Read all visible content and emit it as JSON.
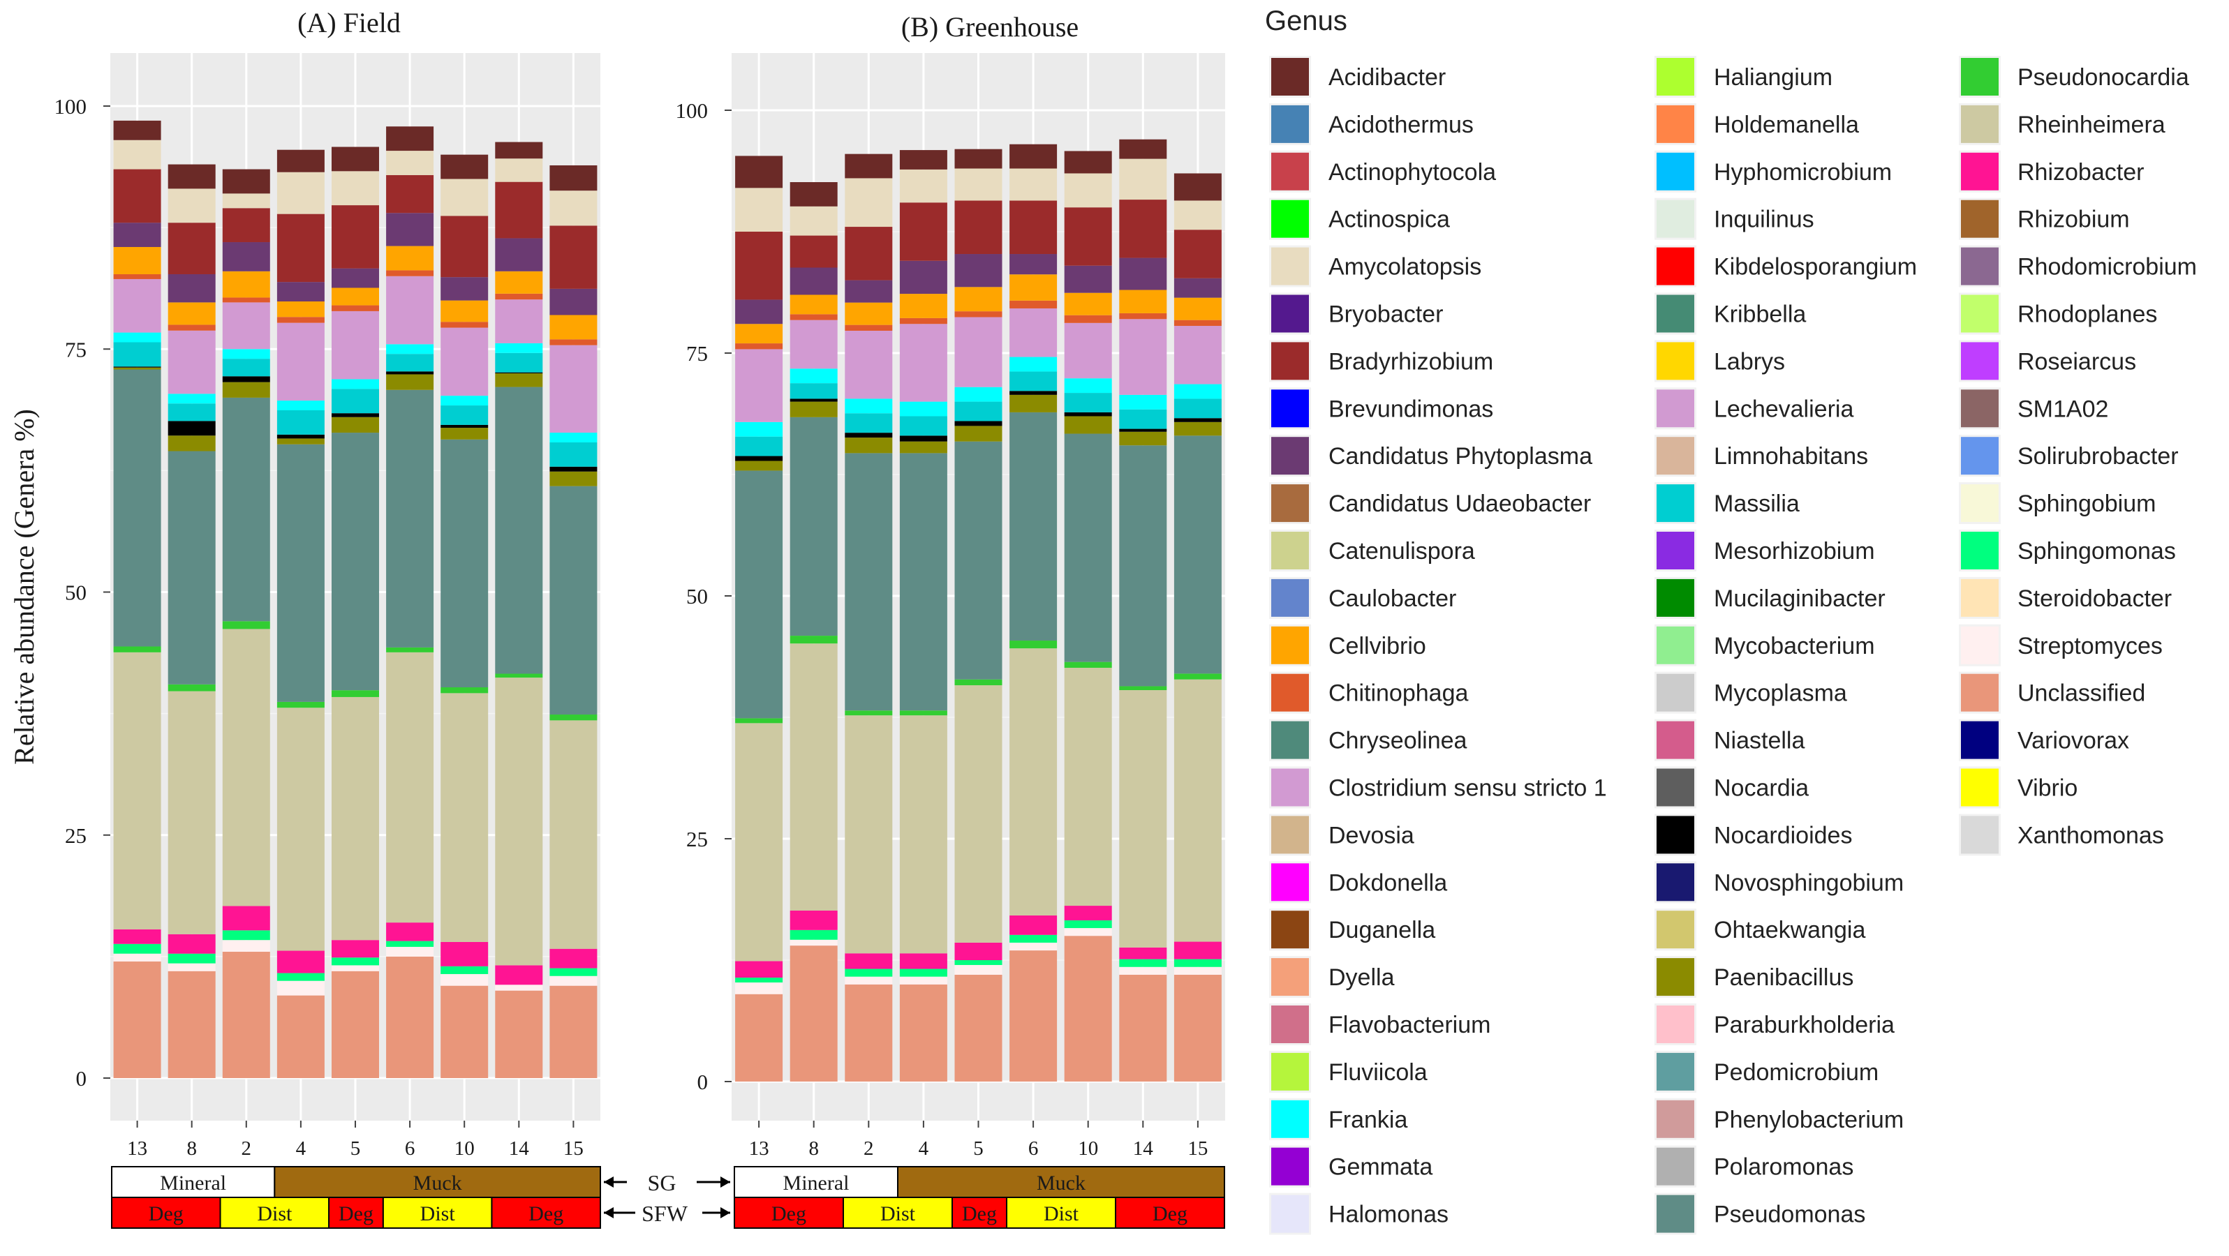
{
  "chart_data": [
    {
      "type": "bar",
      "title": "(A) Field",
      "ylabel": "Relative abundance (Genera %)",
      "ylim": [
        0,
        100
      ],
      "yticks": [
        "0",
        "25",
        "50",
        "75",
        "100"
      ],
      "categories": [
        "13",
        "8",
        "2",
        "4",
        "5",
        "6",
        "10",
        "14",
        "15"
      ],
      "series": [
        {
          "name": "Unclassified",
          "values": [
            12,
            11,
            13,
            8.5,
            11,
            12.5,
            9.5,
            9,
            9.5
          ]
        },
        {
          "name": "Streptomyces",
          "values": [
            0.8,
            0.8,
            1.2,
            1.5,
            0.6,
            1,
            1.2,
            0.6,
            1
          ]
        },
        {
          "name": "Sphingomonas",
          "values": [
            1,
            1,
            1,
            0.8,
            0.8,
            0.6,
            0.8,
            0,
            0.8
          ]
        },
        {
          "name": "Rhizobacter",
          "values": [
            1.5,
            2,
            2.5,
            2.3,
            1.8,
            1.9,
            2.5,
            2,
            2
          ]
        },
        {
          "name": "Rheinheimera",
          "values": [
            28.5,
            25,
            28.5,
            25,
            25,
            27.8,
            25.6,
            29.6,
            23.5
          ]
        },
        {
          "name": "Pseudonocardia",
          "values": [
            0.6,
            0.7,
            0.8,
            0.6,
            0.7,
            0.5,
            0.6,
            0.4,
            0.6
          ]
        },
        {
          "name": "Pseudomonas",
          "values": [
            28.5,
            24,
            23,
            26.5,
            26.5,
            26.5,
            25.5,
            29.5,
            23.5
          ]
        },
        {
          "name": "Paenibacillus",
          "values": [
            0.2,
            1.6,
            1.6,
            0.6,
            1.6,
            1.6,
            1.2,
            1.4,
            1.5
          ]
        },
        {
          "name": "Nocardioides",
          "values": [
            0.1,
            1.5,
            0.6,
            0.4,
            0.4,
            0.3,
            0.3,
            0.1,
            0.5
          ]
        },
        {
          "name": "Massilia",
          "values": [
            2.5,
            1.8,
            1.8,
            2.5,
            2.5,
            1.8,
            2,
            2,
            2.5
          ]
        },
        {
          "name": "Frankia",
          "values": [
            1,
            1,
            1,
            1,
            1,
            1,
            1,
            1,
            1
          ]
        },
        {
          "name": "Clostridium sensu stricto 1",
          "values": [
            5.5,
            6.5,
            4.8,
            8,
            7,
            7,
            7,
            4.5,
            9
          ]
        },
        {
          "name": "Chitinophaga",
          "values": [
            0.5,
            0.6,
            0.5,
            0.6,
            0.6,
            0.6,
            0.6,
            0.6,
            0.6
          ]
        },
        {
          "name": "Cellvibrio",
          "values": [
            2.8,
            2.3,
            2.7,
            1.6,
            1.8,
            2.5,
            2.2,
            2.3,
            2.5
          ]
        },
        {
          "name": "Candidatus Phytoplasma",
          "values": [
            2.5,
            2.9,
            3,
            2,
            2,
            3.4,
            2.4,
            3.4,
            2.7
          ]
        },
        {
          "name": "Bradyrhizobium",
          "values": [
            5.5,
            5.3,
            3.5,
            7,
            6.5,
            3.9,
            6.3,
            5.8,
            6.5
          ]
        },
        {
          "name": "Amycolatopsis",
          "values": [
            3,
            3.5,
            1.5,
            4.3,
            3.5,
            2.5,
            3.8,
            2.4,
            3.6
          ]
        },
        {
          "name": "Acidibacter",
          "values": [
            2,
            2.5,
            2.5,
            2.3,
            2.5,
            2.5,
            2.5,
            1.7,
            2.6
          ]
        }
      ]
    },
    {
      "type": "bar",
      "title": "(B) Greenhouse",
      "ylabel": "",
      "ylim": [
        0,
        100
      ],
      "yticks": [
        "0",
        "25",
        "50",
        "75",
        "100"
      ],
      "categories": [
        "13",
        "8",
        "2",
        "4",
        "5",
        "6",
        "10",
        "14",
        "15"
      ],
      "series": [
        {
          "name": "Unclassified",
          "values": [
            9,
            14,
            10,
            10,
            11,
            13.5,
            15,
            11,
            11
          ]
        },
        {
          "name": "Streptomyces",
          "values": [
            1.2,
            0.6,
            0.8,
            0.8,
            1,
            0.8,
            0.8,
            0.8,
            0.8
          ]
        },
        {
          "name": "Sphingomonas",
          "values": [
            0.5,
            1,
            0.8,
            0.8,
            0.5,
            0.8,
            0.8,
            0.8,
            0.8
          ]
        },
        {
          "name": "Rhizobacter",
          "values": [
            1.7,
            2,
            1.6,
            1.6,
            1.8,
            2,
            1.5,
            1.2,
            1.8
          ]
        },
        {
          "name": "Rheinheimera",
          "values": [
            24.5,
            27.5,
            24.5,
            24.5,
            26.5,
            27.5,
            24.5,
            26.5,
            27
          ]
        },
        {
          "name": "Pseudonocardia",
          "values": [
            0.5,
            0.8,
            0.5,
            0.5,
            0.6,
            0.8,
            0.6,
            0.4,
            0.6
          ]
        },
        {
          "name": "Pseudomonas",
          "values": [
            25.5,
            22.5,
            26.5,
            26.5,
            24.5,
            23.5,
            23.5,
            24.8,
            24.5
          ]
        },
        {
          "name": "Paenibacillus",
          "values": [
            1,
            1.6,
            1.6,
            1.2,
            1.6,
            1.8,
            1.8,
            1.4,
            1.4
          ]
        },
        {
          "name": "Nocardioides",
          "values": [
            0.5,
            0.3,
            0.5,
            0.6,
            0.5,
            0.4,
            0.4,
            0.3,
            0.4
          ]
        },
        {
          "name": "Massilia",
          "values": [
            2,
            1.6,
            2,
            2,
            2,
            2,
            2,
            2,
            2
          ]
        },
        {
          "name": "Frankia",
          "values": [
            1.5,
            1.5,
            1.5,
            1.5,
            1.5,
            1.5,
            1.5,
            1.5,
            1.5
          ]
        },
        {
          "name": "Clostridium sensu stricto 1",
          "values": [
            7.5,
            5,
            7,
            8,
            7.2,
            5,
            5.7,
            7.8,
            6
          ]
        },
        {
          "name": "Chitinophaga",
          "values": [
            0.6,
            0.6,
            0.6,
            0.6,
            0.6,
            0.8,
            0.8,
            0.6,
            0.6
          ]
        },
        {
          "name": "Cellvibrio",
          "values": [
            2,
            2,
            2.3,
            2.5,
            2.5,
            2.7,
            2.3,
            2.4,
            2.3
          ]
        },
        {
          "name": "Candidatus Phytoplasma",
          "values": [
            2.5,
            2.8,
            2.3,
            3.4,
            3.4,
            2.1,
            2.8,
            3.3,
            2
          ]
        },
        {
          "name": "Bradyrhizobium",
          "values": [
            7,
            3.3,
            5.5,
            6,
            5.5,
            5.5,
            6,
            6,
            5
          ]
        },
        {
          "name": "Amycolatopsis",
          "values": [
            4.5,
            3,
            5,
            3.4,
            3.3,
            3.3,
            3.5,
            4.2,
            3
          ]
        },
        {
          "name": "Acidibacter",
          "values": [
            3.3,
            2.5,
            2.5,
            2,
            2,
            2.5,
            2.3,
            2,
            2.8
          ]
        }
      ]
    }
  ],
  "bands": {
    "sg_label": "SG",
    "sfw_label": "SFW",
    "sg_segments": [
      {
        "label": "Mineral",
        "from": 0,
        "to": 3,
        "color": "#ffffff"
      },
      {
        "label": "Muck",
        "from": 3,
        "to": 9,
        "color": "#a06a10"
      }
    ],
    "sfw_segments": [
      {
        "label": "Deg",
        "from": 0,
        "to": 2,
        "color": "#ff0000"
      },
      {
        "label": "Dist",
        "from": 2,
        "to": 4,
        "color": "#ffff00"
      },
      {
        "label": "Deg",
        "from": 4,
        "to": 5,
        "color": "#ff0000"
      },
      {
        "label": "Dist",
        "from": 5,
        "to": 7,
        "color": "#ffff00"
      },
      {
        "label": "Deg",
        "from": 7,
        "to": 9,
        "color": "#ff0000"
      }
    ]
  },
  "legend": {
    "title": "Genus",
    "items": [
      {
        "name": "Acidibacter",
        "color": "#6b2a27"
      },
      {
        "name": "Acidothermus",
        "color": "#4682b4"
      },
      {
        "name": "Actinophytocola",
        "color": "#c8414b"
      },
      {
        "name": "Actinospica",
        "color": "#00ff00"
      },
      {
        "name": "Amycolatopsis",
        "color": "#e8dcc0"
      },
      {
        "name": "Bryobacter",
        "color": "#54198e"
      },
      {
        "name": "Bradyrhizobium",
        "color": "#9b2b2b"
      },
      {
        "name": "Brevundimonas",
        "color": "#0000ff"
      },
      {
        "name": "Candidatus Phytoplasma",
        "color": "#6b3a72"
      },
      {
        "name": "Candidatus Udaeobacter",
        "color": "#a86b3e"
      },
      {
        "name": "Catenulispora",
        "color": "#cdd28e"
      },
      {
        "name": "Caulobacter",
        "color": "#6384cc"
      },
      {
        "name": "Cellvibrio",
        "color": "#ffa500"
      },
      {
        "name": "Chitinophaga",
        "color": "#e05a2b"
      },
      {
        "name": "Chryseolinea",
        "color": "#4f8a7b"
      },
      {
        "name": "Clostridium sensu stricto 1",
        "color": "#d29ad2"
      },
      {
        "name": "Devosia",
        "color": "#d2b48c"
      },
      {
        "name": "Dokdonella",
        "color": "#ff00ff"
      },
      {
        "name": "Duganella",
        "color": "#8b4513"
      },
      {
        "name": "Dyella",
        "color": "#f4a07a"
      },
      {
        "name": "Flavobacterium",
        "color": "#d06f8a"
      },
      {
        "name": "Fluviicola",
        "color": "#b5f53c"
      },
      {
        "name": "Frankia",
        "color": "#00ffff"
      },
      {
        "name": "Gemmata",
        "color": "#9400d3"
      },
      {
        "name": "Halomonas",
        "color": "#e6e6fa"
      },
      {
        "name": "Haliangium",
        "color": "#adff2f"
      },
      {
        "name": "Holdemanella",
        "color": "#ff8447"
      },
      {
        "name": "Hyphomicrobium",
        "color": "#00bfff"
      },
      {
        "name": "Inquilinus",
        "color": "#e0ede0"
      },
      {
        "name": "Kibdelosporangium",
        "color": "#ff0000"
      },
      {
        "name": "Kribbella",
        "color": "#458b74"
      },
      {
        "name": "Labrys",
        "color": "#ffd700"
      },
      {
        "name": "Lechevalieria",
        "color": "#d19ad1"
      },
      {
        "name": "Limnohabitans",
        "color": "#d9b59b"
      },
      {
        "name": "Massilia",
        "color": "#00ced1"
      },
      {
        "name": "Mesorhizobium",
        "color": "#8a2be2"
      },
      {
        "name": "Mucilaginibacter",
        "color": "#008b00"
      },
      {
        "name": "Mycobacterium",
        "color": "#90ee90"
      },
      {
        "name": "Mycoplasma",
        "color": "#cccccc"
      },
      {
        "name": "Niastella",
        "color": "#d45c8c"
      },
      {
        "name": "Nocardia",
        "color": "#5e5e5e"
      },
      {
        "name": "Nocardioides",
        "color": "#000000"
      },
      {
        "name": "Novosphingobium",
        "color": "#191970"
      },
      {
        "name": "Ohtaekwangia",
        "color": "#d2c76e"
      },
      {
        "name": "Paenibacillus",
        "color": "#8b8b00"
      },
      {
        "name": "Paraburkholderia",
        "color": "#ffc0cb"
      },
      {
        "name": "Pedomicrobium",
        "color": "#5f9ea0"
      },
      {
        "name": "Phenylobacterium",
        "color": "#d09b9b"
      },
      {
        "name": "Polaromonas",
        "color": "#b0b0b0"
      },
      {
        "name": "Pseudomonas",
        "color": "#5f8c86"
      },
      {
        "name": "Pseudonocardia",
        "color": "#32cd32"
      },
      {
        "name": "Rheinheimera",
        "color": "#cdc9a2"
      },
      {
        "name": "Rhizobacter",
        "color": "#ff1493"
      },
      {
        "name": "Rhizobium",
        "color": "#a0642b"
      },
      {
        "name": "Rhodomicrobium",
        "color": "#8b6891"
      },
      {
        "name": "Rhodoplanes",
        "color": "#c1ff6b"
      },
      {
        "name": "Roseiarcus",
        "color": "#bf3eff"
      },
      {
        "name": "SM1A02",
        "color": "#8b6565"
      },
      {
        "name": "Solirubrobacter",
        "color": "#6495ed"
      },
      {
        "name": "Sphingobium",
        "color": "#f8f8d8"
      },
      {
        "name": "Sphingomonas",
        "color": "#00ff7f"
      },
      {
        "name": "Steroidobacter",
        "color": "#ffe4b5"
      },
      {
        "name": "Streptomyces",
        "color": "#fff0f0"
      },
      {
        "name": "Unclassified",
        "color": "#e9967a"
      },
      {
        "name": "Variovorax",
        "color": "#000080"
      },
      {
        "name": "Vibrio",
        "color": "#ffff00"
      },
      {
        "name": "Xanthomonas",
        "color": "#d9d9d9"
      }
    ]
  }
}
